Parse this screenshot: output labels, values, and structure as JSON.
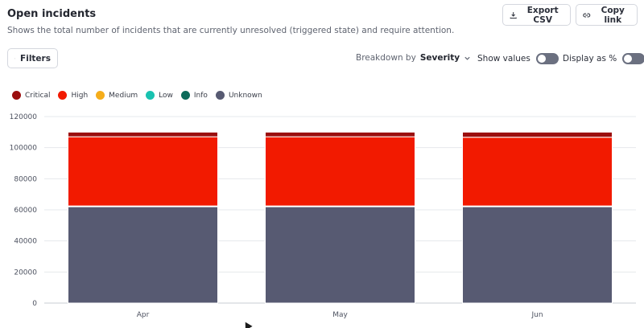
{
  "header": {
    "title": "Open incidents",
    "subtitle": "Shows the total number of incidents that are currently unresolved (triggered state) and require attention."
  },
  "toolbar": {
    "export_label": "Export CSV",
    "copy_label": "Copy link",
    "filters_label": "Filters",
    "breakdown_prefix": "Breakdown by",
    "breakdown_value": "Severity",
    "show_values_label": "Show values",
    "display_percent_label": "Display as %",
    "show_values_on": false,
    "display_percent_on": false
  },
  "legend": [
    {
      "name": "Critical",
      "color": "#9b0e0e"
    },
    {
      "name": "High",
      "color": "#f21a00"
    },
    {
      "name": "Medium",
      "color": "#f5ad1b"
    },
    {
      "name": "Low",
      "color": "#19c2b0"
    },
    {
      "name": "Info",
      "color": "#0d6b5a"
    },
    {
      "name": "Unknown",
      "color": "#575a72"
    }
  ],
  "chart_data": {
    "type": "bar",
    "stacked": true,
    "categories": [
      "Apr",
      "May",
      "Jun"
    ],
    "ylim": [
      0,
      120000
    ],
    "yticks": [
      0,
      20000,
      40000,
      60000,
      80000,
      100000,
      120000
    ],
    "series": [
      {
        "name": "Unknown",
        "color": "#575a72",
        "values": [
          62000,
          62000,
          62000
        ]
      },
      {
        "name": "Info",
        "color": "#0d6b5a",
        "values": [
          0,
          0,
          0
        ]
      },
      {
        "name": "Low",
        "color": "#19c2b0",
        "values": [
          200,
          200,
          200
        ]
      },
      {
        "name": "Medium",
        "color": "#f5ad1b",
        "values": [
          300,
          300,
          300
        ]
      },
      {
        "name": "High",
        "color": "#f21a00",
        "values": [
          44500,
          44500,
          44200
        ]
      },
      {
        "name": "Critical",
        "color": "#9b0e0e",
        "values": [
          3000,
          3000,
          3300
        ]
      }
    ]
  }
}
